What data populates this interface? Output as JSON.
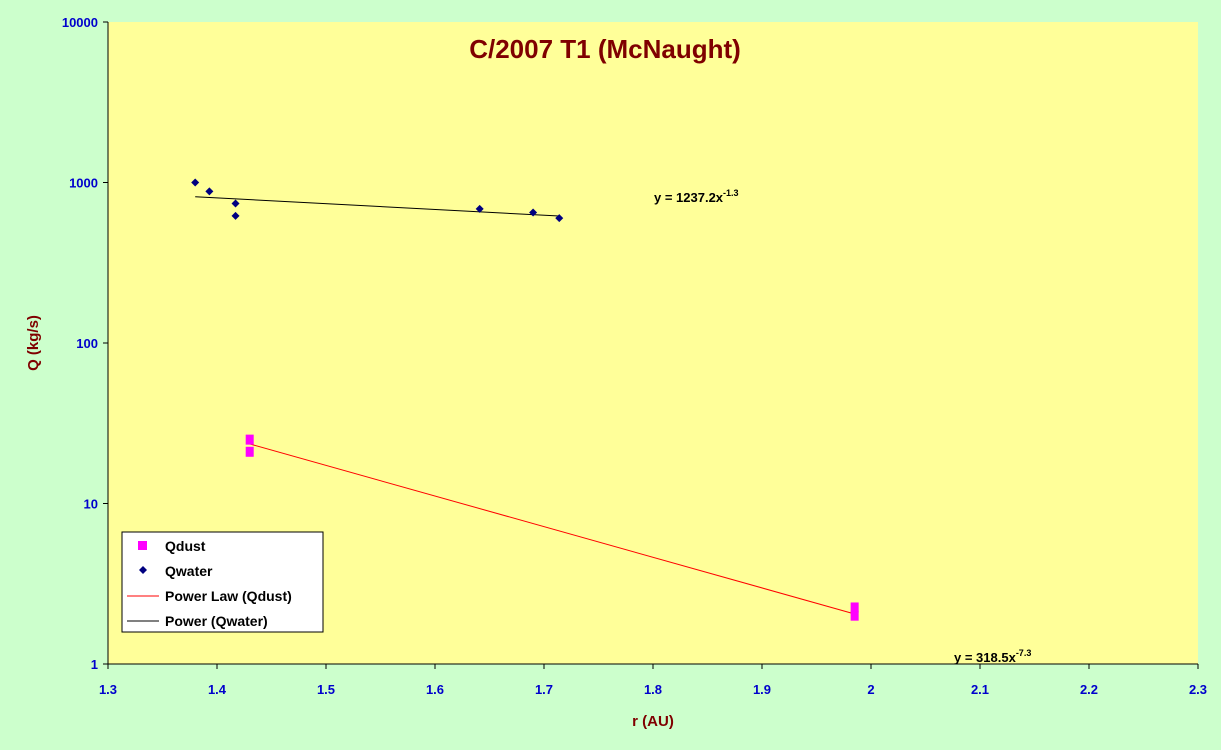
{
  "chart_data": {
    "type": "scatter",
    "title": "C/2007 T1 (McNaught)",
    "xlabel": "r (AU)",
    "ylabel": "Q (kg/s)",
    "xlim": [
      1.3,
      2.3
    ],
    "ylim": [
      1,
      10000
    ],
    "yscale": "log",
    "x_ticks": [
      "1.3",
      "1.4",
      "1.5",
      "1.6",
      "1.7",
      "1.8",
      "1.9",
      "2",
      "2.1",
      "2.2",
      "2.3"
    ],
    "y_ticks": [
      "1",
      "10",
      "100",
      "1000",
      "10000"
    ],
    "grid": false,
    "legend_position": "bottom-left",
    "colors": {
      "plot_bg": "#ffff99",
      "outer_bg": "#ccffcc",
      "qdust": "#ff00ff",
      "qwater": "#000080",
      "qdust_fit": "#ff0000",
      "qwater_fit": "#000000"
    },
    "series": [
      {
        "name": "Qdust",
        "marker": "square",
        "points": [
          {
            "x": 1.43,
            "y": 25
          },
          {
            "x": 1.43,
            "y": 21
          },
          {
            "x": 1.985,
            "y": 2.25
          },
          {
            "x": 1.985,
            "y": 2.0
          }
        ]
      },
      {
        "name": "Qwater",
        "marker": "diamond",
        "points": [
          {
            "x": 1.38,
            "y": 1000
          },
          {
            "x": 1.393,
            "y": 880
          },
          {
            "x": 1.417,
            "y": 740
          },
          {
            "x": 1.417,
            "y": 620
          },
          {
            "x": 1.641,
            "y": 685
          },
          {
            "x": 1.69,
            "y": 650
          },
          {
            "x": 1.714,
            "y": 600
          }
        ]
      }
    ],
    "trendlines": [
      {
        "name": "Power Law (Qdust)",
        "series": "Qdust",
        "coef": 318.5,
        "exp": -7.3,
        "x_range": [
          1.43,
          1.985
        ],
        "endpoints": [
          {
            "x": 1.43,
            "y": 23.5
          },
          {
            "x": 1.985,
            "y": 2.05
          }
        ],
        "equation_prefix": "y = 318.5x",
        "equation_exp": "-7.3"
      },
      {
        "name": "Power (Qwater)",
        "series": "Qwater",
        "coef": 1237.2,
        "exp": -1.3,
        "x_range": [
          1.38,
          1.714
        ],
        "endpoints": [
          {
            "x": 1.38,
            "y": 815
          },
          {
            "x": 1.714,
            "y": 618
          }
        ],
        "equation_prefix": "y = 1237.2x",
        "equation_exp": "-1.3"
      }
    ]
  }
}
